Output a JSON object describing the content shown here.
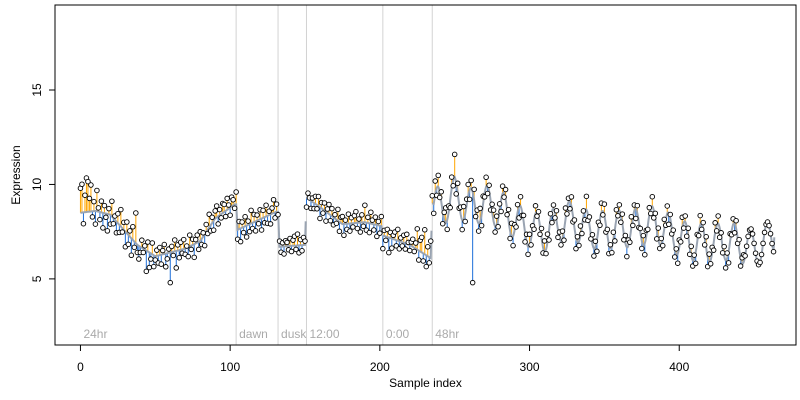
{
  "chart_data": {
    "type": "scatter",
    "xlabel": "Sample index",
    "ylabel": "Expression",
    "xlim": [
      -17,
      478
    ],
    "ylim": [
      1.5,
      19.5
    ],
    "xticks": [
      0,
      100,
      200,
      300,
      400
    ],
    "yticks": [
      5,
      10,
      15
    ],
    "xtick_labels": [
      "0",
      "100",
      "200",
      "300",
      "400"
    ],
    "ytick_labels": [
      "5",
      "10",
      "15"
    ],
    "grid": false,
    "legend": "none",
    "colors": {
      "point_fill": "#ffffff",
      "point_stroke": "#000000",
      "above_fit": "#ffa500",
      "below_fit": "#1e6fd9",
      "fit_line": "#9aa4b2",
      "segment_line": "#d3d3d3",
      "segment_label": "#aaaaaa"
    },
    "segments": [
      {
        "x": 0,
        "label": "24hr"
      },
      {
        "x": 104,
        "label": "dawn"
      },
      {
        "x": 132,
        "label": "dusk"
      },
      {
        "x": 151,
        "label": "12:00"
      },
      {
        "x": 202,
        "label": "0:00"
      },
      {
        "x": 235,
        "label": "48hr"
      }
    ],
    "fit_knots": [
      [
        0,
        8.5
      ],
      [
        10,
        8.6
      ],
      [
        20,
        8.4
      ],
      [
        30,
        7.5
      ],
      [
        38,
        6.8
      ],
      [
        50,
        6.2
      ],
      [
        60,
        6.4
      ],
      [
        70,
        6.6
      ],
      [
        80,
        7.0
      ],
      [
        90,
        8.2
      ],
      [
        104,
        9.0
      ],
      [
        105,
        7.6
      ],
      [
        132,
        8.6
      ],
      [
        133,
        6.7
      ],
      [
        150,
        6.8
      ],
      [
        151,
        9.3
      ],
      [
        160,
        8.8
      ],
      [
        175,
        7.9
      ],
      [
        190,
        8.0
      ],
      [
        201,
        7.8
      ],
      [
        202,
        7.3
      ],
      [
        220,
        6.8
      ],
      [
        234,
        6.1
      ],
      [
        235,
        9.0
      ],
      [
        242,
        8.8
      ],
      [
        250,
        9.4
      ],
      [
        260,
        8.8
      ],
      [
        270,
        9.0
      ],
      [
        282,
        8.6
      ],
      [
        295,
        7.8
      ],
      [
        310,
        7.4
      ],
      [
        325,
        8.2
      ],
      [
        340,
        7.6
      ],
      [
        355,
        7.6
      ],
      [
        370,
        7.7
      ],
      [
        385,
        7.9
      ],
      [
        395,
        7.4
      ],
      [
        405,
        7.0
      ],
      [
        420,
        6.9
      ],
      [
        435,
        7.0
      ],
      [
        450,
        6.6
      ],
      [
        463,
        7.2
      ]
    ],
    "osc_segments": [
      {
        "start": 236,
        "end": 463,
        "amp": 1.0,
        "period": 11
      }
    ],
    "x_count": 464,
    "residuals": [
      1.3,
      1.5,
      -0.6,
      0.9,
      1.8,
      1.6,
      0.7,
      1.4,
      -0.3,
      0.5,
      -0.7,
      1.1,
      0.2,
      -0.4,
      0.6,
      -0.8,
      0.4,
      -0.2,
      -0.9,
      0.3,
      -0.5,
      0.8,
      -0.3,
      0.2,
      -0.6,
      0.5,
      -0.4,
      0.9,
      -0.2,
      0.4,
      -0.8,
      0.6,
      -0.5,
      0.3,
      -0.9,
      0.7,
      -0.3,
      1.6,
      -0.4,
      -0.7,
      -0.3,
      0.4,
      -0.2,
      0.2,
      -1.1,
      0.5,
      -0.8,
      -0.3,
      0.6,
      -0.6,
      -0.2,
      0.3,
      -0.4,
      0.4,
      -0.5,
      0.2,
      0.5,
      -0.7,
      -0.3,
      0.2,
      -1.6,
      0.3,
      -0.2,
      0.6,
      -0.9,
      0.3,
      -0.4,
      0.4,
      -0.2,
      0.5,
      -0.3,
      0.1,
      -0.5,
      0.6,
      -0.2,
      0.3,
      -0.7,
      0.2,
      0.4,
      -0.4,
      0.5,
      -0.3,
      0.2,
      -0.6,
      0.4,
      -0.2,
      0.7,
      -0.3,
      0.3,
      -0.5,
      0.4,
      0.6,
      -0.4,
      0.3,
      -0.2,
      0.5,
      0.4,
      -0.3,
      0.6,
      0.2,
      -0.4,
      0.5,
      0.3,
      -0.2,
      0.6,
      -0.5,
      0.4,
      -0.7,
      0.3,
      -0.3,
      0.5,
      -0.6,
      0.2,
      -0.4,
      0.7,
      -0.3,
      0.4,
      -0.5,
      0.3,
      -0.2,
      0.5,
      -0.6,
      0.4,
      -0.3,
      0.6,
      -0.4,
      0.2,
      -0.5,
      0.3,
      0.7,
      -0.3,
      0.4,
      -0.2,
      0.3,
      -0.3,
      0.2,
      -0.4,
      0.3,
      0.2,
      -0.2,
      0.4,
      -0.3,
      0.3,
      0.5,
      -0.2,
      0.6,
      -0.4,
      0.3,
      -0.3,
      0.4,
      0.2,
      -0.5,
      0.3,
      0.1,
      -0.4,
      0.2,
      -0.3,
      0.4,
      -0.2,
      0.5,
      -0.6,
      0.3,
      -0.2,
      0.4,
      -0.5,
      0.2,
      0.5,
      -0.3,
      0.4,
      -0.4,
      0.2,
      -0.2,
      0.6,
      -0.5,
      0.3,
      0.4,
      -0.6,
      0.2,
      -0.3,
      0.5,
      -0.4,
      0.3,
      -0.2,
      0.4,
      0.6,
      -0.3,
      0.2,
      -0.5,
      0.4,
      -0.2,
      0.9,
      -0.4,
      0.3,
      -0.5,
      0.6,
      0.2,
      -0.3,
      0.4,
      -0.6,
      0.2,
      -0.4,
      0.5,
      -0.7,
      0.3,
      -0.2,
      0.4,
      -0.8,
      0.3,
      -0.5,
      0.2,
      0.4,
      -0.3,
      0.6,
      -0.4,
      0.2,
      -0.2,
      0.4,
      -0.3,
      0.5,
      0.1,
      -0.3,
      0.2,
      0.4,
      -0.2,
      0.3,
      1.1,
      -0.5,
      0.6,
      0.8,
      -0.4,
      1.3,
      -0.6,
      0.5,
      -0.3,
      0.9,
      0.4,
      -0.5,
      0.7,
      -0.4,
      0.6,
      -0.3,
      0.5,
      -0.6,
      0.4,
      0.8,
      -0.5,
      0.3,
      -0.4,
      0.6,
      -0.3,
      1.2,
      -0.6,
      0.5,
      -0.2,
      0.4,
      -0.5,
      0.7,
      -0.4,
      0.3,
      0.6,
      -0.5,
      0.4,
      -4.8,
      0.6,
      -0.3,
      0.5,
      -0.4,
      0.7,
      -0.6,
      0.4,
      -0.2,
      0.5,
      -0.4,
      0.3,
      -0.5,
      0.4,
      0.6,
      -0.3,
      0.5,
      -0.4,
      0.3,
      -0.6,
      0.4,
      -0.2,
      0.5,
      -0.3,
      0.6,
      -0.4,
      0.7,
      -0.5,
      0.3,
      -0.3,
      0.4,
      -0.6,
      0.5,
      -0.2,
      0.3,
      -0.5,
      0.4,
      -0.4,
      0.6,
      -0.3,
      0.2,
      -0.5,
      0.4,
      -0.2,
      0.3,
      -0.4,
      0.5,
      -0.3,
      0.6,
      -0.2,
      0.4,
      -0.5,
      0.3,
      -0.6,
      0.2,
      -0.3,
      0.5,
      -0.4,
      0.3,
      -0.2,
      0.4,
      -0.5,
      0.6,
      -0.3,
      0.2,
      -0.4,
      0.5,
      -0.3,
      0.4,
      -0.6,
      0.3,
      -0.2,
      0.5,
      -0.4,
      0.3,
      -0.5,
      0.7,
      -0.3,
      0.4,
      -0.2,
      0.5,
      -0.4,
      0.3,
      -0.6,
      0.4,
      -0.3,
      0.5,
      -0.2,
      0.6,
      -0.4,
      0.3,
      -0.5,
      0.2,
      -0.3,
      0.4,
      -0.6,
      0.5,
      -0.2,
      0.3,
      -0.4,
      0.5,
      -0.3,
      0.4,
      -0.5,
      0.3,
      -0.2,
      0.6,
      -0.4,
      0.3,
      -0.5,
      0.4,
      -0.3,
      0.2,
      -0.4,
      0.5,
      -0.6,
      0.3,
      -0.2,
      0.4,
      -0.3,
      0.5,
      -0.4,
      0.3,
      -0.5,
      0.6,
      -0.2,
      0.3,
      -0.4,
      0.5,
      -0.3,
      0.4,
      -0.6,
      0.2,
      -0.3,
      0.5,
      -0.4,
      0.3,
      -0.5,
      0.4,
      -0.2,
      0.6,
      -0.3,
      0.3,
      -0.5,
      0.4,
      -0.4,
      0.5,
      -0.3,
      0.2,
      -0.6,
      0.4,
      -0.2,
      0.5,
      -0.3,
      0.3,
      -0.4,
      0.6,
      -0.5,
      0.4,
      -0.2,
      0.3,
      -0.4,
      0.5,
      -0.3,
      0.4,
      -0.5,
      0.2,
      -0.3,
      0.5,
      -0.4,
      0.3,
      -0.6,
      0.4,
      -0.2,
      0.3,
      -0.5,
      0.4,
      -0.3,
      0.5,
      -0.4,
      0.3,
      0.4
    ]
  }
}
